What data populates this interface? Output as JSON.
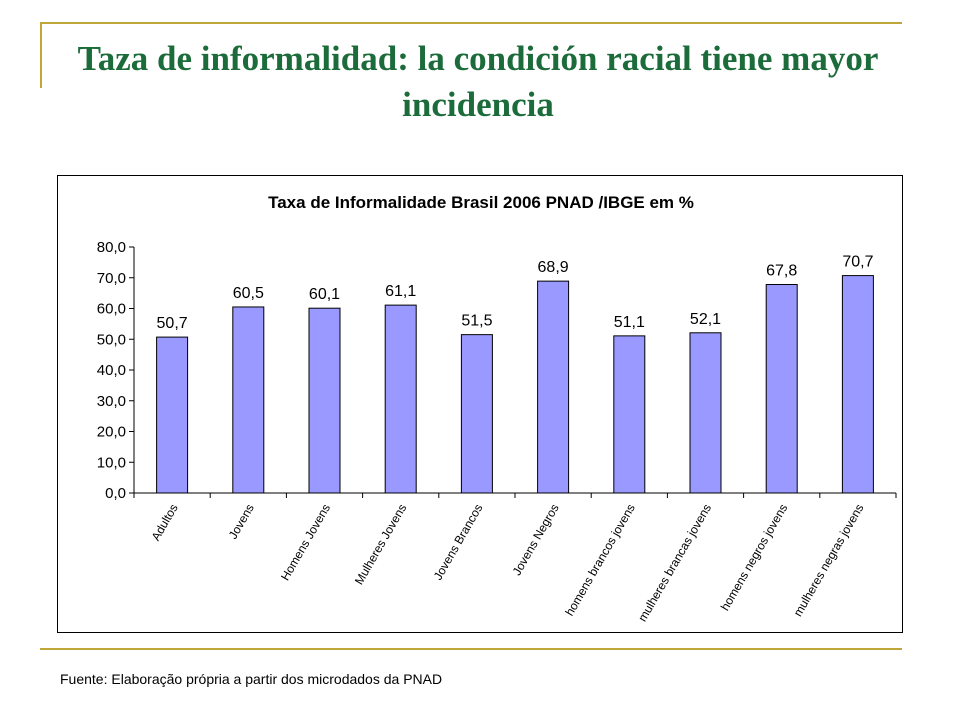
{
  "slide": {
    "title": "Taza de informalidad: la condición racial tiene mayor incidencia",
    "footnote": "Fuente: Elaboração própria a partir dos microdados da PNAD"
  },
  "colors": {
    "title": "#1c6b3a",
    "rule": "#c0a538",
    "bar_fill": "#9999ff",
    "bar_stroke": "#000000"
  },
  "chart_data": {
    "type": "bar",
    "title": "Taxa de Informalidade Brasil 2006 PNAD /IBGE em %",
    "xlabel": "",
    "ylabel": "",
    "ylim": [
      0,
      80
    ],
    "yticks": [
      "0,0",
      "10,0",
      "20,0",
      "30,0",
      "40,0",
      "50,0",
      "60,0",
      "70,0",
      "80,0"
    ],
    "grid": false,
    "legend": "none",
    "categories": [
      "Adultos",
      "Jovens",
      "Homens Jovens",
      "Mulheres Jovens",
      "Jovens Brancos",
      "Jovens Negros",
      "homens brancos jovens",
      "mulheres brancas jovens",
      "homens negros jovens",
      "mulheres negras jovens"
    ],
    "values": [
      50.7,
      60.5,
      60.1,
      61.1,
      51.5,
      68.9,
      51.1,
      52.1,
      67.8,
      70.7
    ],
    "value_labels": [
      "50,7",
      "60,5",
      "60,1",
      "61,1",
      "51,5",
      "68,9",
      "51,1",
      "52,1",
      "67,8",
      "70,7"
    ]
  }
}
